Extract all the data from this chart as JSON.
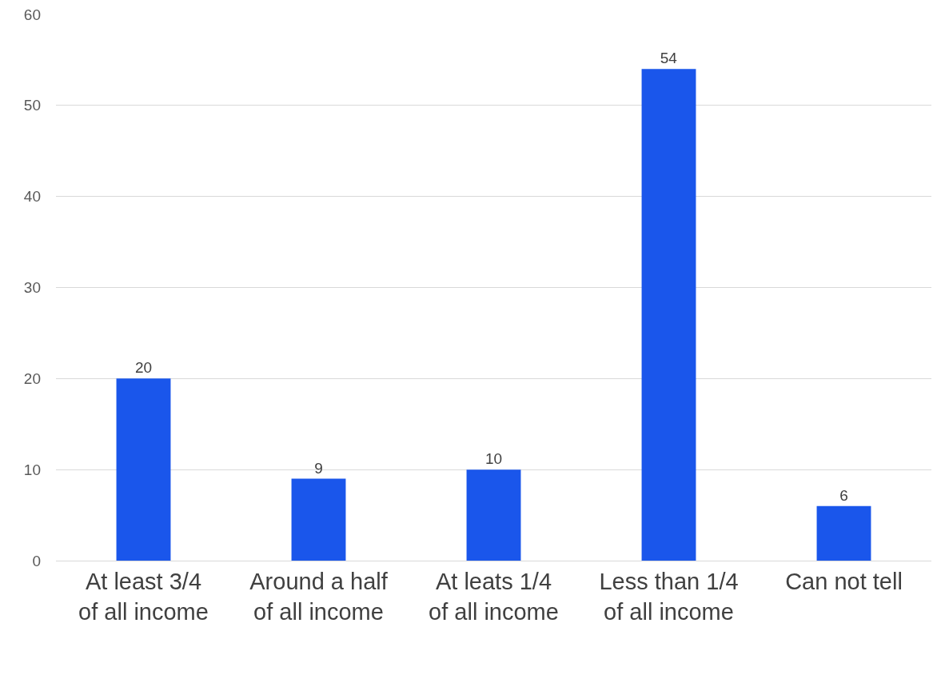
{
  "chart_data": {
    "type": "bar",
    "categories": [
      "At least 3/4 of all income",
      "Around a half of all income",
      "At leats 1/4 of all income",
      "Less than 1/4 of all income",
      "Can not tell"
    ],
    "values": [
      20,
      9,
      10,
      54,
      6
    ],
    "color": "#1a56eb",
    "ylim": [
      0,
      60
    ],
    "yticks": [
      0,
      10,
      20,
      30,
      40,
      50,
      60
    ],
    "grid": "y",
    "data_labels": true
  }
}
